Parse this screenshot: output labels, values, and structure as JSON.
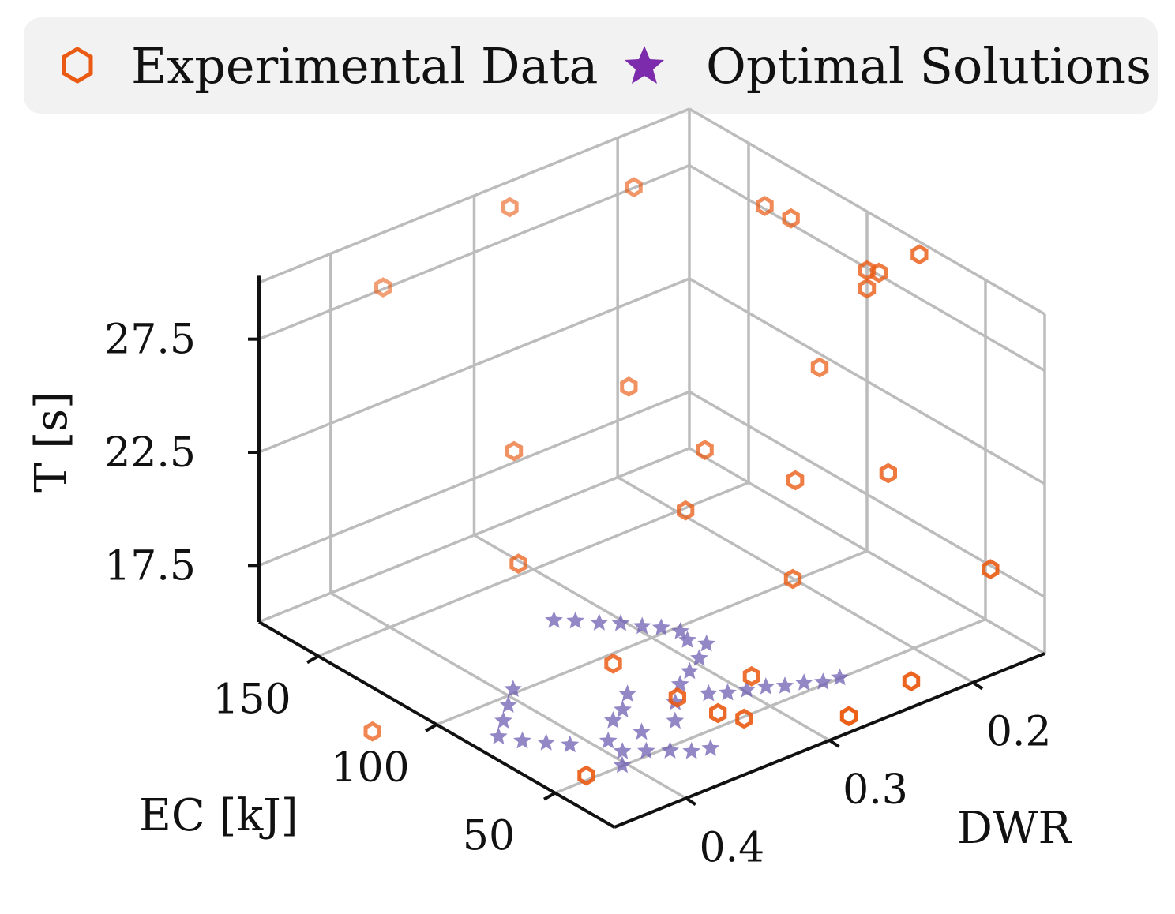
{
  "colors": {
    "experimental": "#ea5a12",
    "optimal": "#6f5fb3",
    "optimal_legend": "#7b2bab",
    "grid": "#bcbcbc",
    "axis": "#111111",
    "legend_bg": "#f2f2f2"
  },
  "legend": {
    "experimental_label": "Experimental Data",
    "experimental_icon": "hexagon-outline-icon",
    "optimal_label": "Optimal Solutions",
    "optimal_icon": "star-icon"
  },
  "chart_data": {
    "type": "scatter3d",
    "title": "",
    "legend_position": "top",
    "grid": true,
    "axes": {
      "x": {
        "label": "DWR",
        "ticks": [
          "0.2",
          "0.3",
          "0.4"
        ],
        "tick_values": [
          0.2,
          0.3,
          0.4
        ],
        "range": [
          0.15,
          0.45
        ]
      },
      "y": {
        "label": "EC [kJ]",
        "ticks": [
          "150",
          "100",
          "50"
        ],
        "tick_values": [
          150,
          100,
          50
        ],
        "range": [
          25,
          175
        ]
      },
      "z": {
        "label": "T [s]",
        "ticks": [
          "27.5",
          "22.5",
          "17.5"
        ],
        "tick_values": [
          27.5,
          22.5,
          17.5
        ],
        "range": [
          15,
          30
        ]
      }
    },
    "series": [
      {
        "name": "Experimental Data",
        "marker": "hexagon",
        "points": [
          {
            "dwr": 0.38,
            "ec": 165,
            "t": 28.6
          },
          {
            "dwr": 0.3,
            "ec": 160,
            "t": 30.4
          },
          {
            "dwr": 0.23,
            "ec": 150,
            "t": 30.1
          },
          {
            "dwr": 0.18,
            "ec": 125,
            "t": 29.5
          },
          {
            "dwr": 0.17,
            "ec": 120,
            "t": 29.0
          },
          {
            "dwr": 0.13,
            "ec": 90,
            "t": 28.2
          },
          {
            "dwr": 0.15,
            "ec": 95,
            "t": 27.6
          },
          {
            "dwr": 0.15,
            "ec": 100,
            "t": 27.4
          },
          {
            "dwr": 0.15,
            "ec": 100,
            "t": 26.6
          },
          {
            "dwr": 0.25,
            "ec": 140,
            "t": 22.4
          },
          {
            "dwr": 0.15,
            "ec": 120,
            "t": 21.9
          },
          {
            "dwr": 0.33,
            "ec": 140,
            "t": 21.6
          },
          {
            "dwr": 0.23,
            "ec": 120,
            "t": 20.3
          },
          {
            "dwr": 0.2,
            "ec": 100,
            "t": 19.4
          },
          {
            "dwr": 0.16,
            "ec": 85,
            "t": 19.6
          },
          {
            "dwr": 0.36,
            "ec": 120,
            "t": 18.6
          },
          {
            "dwr": 0.26,
            "ec": 110,
            "t": 19.0
          },
          {
            "dwr": 0.21,
            "ec": 95,
            "t": 15.6
          },
          {
            "dwr": 0.13,
            "ec": 60,
            "t": 16.1
          },
          {
            "dwr": 0.36,
            "ec": 80,
            "t": 16.6
          },
          {
            "dwr": 0.47,
            "ec": 115,
            "t": 14.3
          },
          {
            "dwr": 0.28,
            "ec": 70,
            "t": 14.6
          },
          {
            "dwr": 0.21,
            "ec": 45,
            "t": 14.1
          },
          {
            "dwr": 0.32,
            "ec": 60,
            "t": 14.6
          },
          {
            "dwr": 0.31,
            "ec": 55,
            "t": 14.4
          },
          {
            "dwr": 0.34,
            "ec": 65,
            "t": 15.5
          },
          {
            "dwr": 0.42,
            "ec": 55,
            "t": 14.7
          },
          {
            "dwr": 0.27,
            "ec": 35,
            "t": 14.7
          }
        ]
      },
      {
        "name": "Optimal Solutions",
        "marker": "star",
        "note": "dense Pareto-front cloud; representative sample",
        "points": [
          {
            "dwr": 0.36,
            "ec": 105,
            "t": 17.0
          },
          {
            "dwr": 0.35,
            "ec": 102,
            "t": 16.9
          },
          {
            "dwr": 0.34,
            "ec": 98,
            "t": 16.8
          },
          {
            "dwr": 0.33,
            "ec": 95,
            "t": 16.7
          },
          {
            "dwr": 0.32,
            "ec": 92,
            "t": 16.5
          },
          {
            "dwr": 0.31,
            "ec": 90,
            "t": 16.3
          },
          {
            "dwr": 0.3,
            "ec": 88,
            "t": 16.0
          },
          {
            "dwr": 0.3,
            "ec": 85,
            "t": 15.8
          },
          {
            "dwr": 0.29,
            "ec": 83,
            "t": 15.5
          },
          {
            "dwr": 0.3,
            "ec": 80,
            "t": 15.3
          },
          {
            "dwr": 0.31,
            "ec": 78,
            "t": 15.1
          },
          {
            "dwr": 0.32,
            "ec": 76,
            "t": 14.9
          },
          {
            "dwr": 0.4,
            "ec": 98,
            "t": 15.4
          },
          {
            "dwr": 0.41,
            "ec": 94,
            "t": 15.2
          },
          {
            "dwr": 0.42,
            "ec": 90,
            "t": 15.0
          },
          {
            "dwr": 0.43,
            "ec": 86,
            "t": 14.8
          },
          {
            "dwr": 0.42,
            "ec": 82,
            "t": 14.6
          },
          {
            "dwr": 0.41,
            "ec": 78,
            "t": 14.5
          },
          {
            "dwr": 0.4,
            "ec": 74,
            "t": 14.4
          },
          {
            "dwr": 0.38,
            "ec": 70,
            "t": 14.3
          },
          {
            "dwr": 0.36,
            "ec": 68,
            "t": 14.3
          },
          {
            "dwr": 0.34,
            "ec": 66,
            "t": 14.4
          },
          {
            "dwr": 0.35,
            "ec": 80,
            "t": 15.0
          },
          {
            "dwr": 0.36,
            "ec": 76,
            "t": 14.8
          },
          {
            "dwr": 0.37,
            "ec": 74,
            "t": 14.7
          },
          {
            "dwr": 0.33,
            "ec": 72,
            "t": 14.6
          },
          {
            "dwr": 0.31,
            "ec": 70,
            "t": 14.6
          },
          {
            "dwr": 0.3,
            "ec": 68,
            "t": 14.5
          },
          {
            "dwr": 0.29,
            "ec": 66,
            "t": 14.5
          },
          {
            "dwr": 0.28,
            "ec": 64,
            "t": 14.5
          },
          {
            "dwr": 0.27,
            "ec": 62,
            "t": 14.4
          },
          {
            "dwr": 0.26,
            "ec": 60,
            "t": 14.4
          },
          {
            "dwr": 0.25,
            "ec": 58,
            "t": 14.3
          },
          {
            "dwr": 0.24,
            "ec": 57,
            "t": 14.3
          },
          {
            "dwr": 0.38,
            "ec": 64,
            "t": 14.2
          },
          {
            "dwr": 0.37,
            "ec": 60,
            "t": 14.2
          },
          {
            "dwr": 0.36,
            "ec": 56,
            "t": 14.2
          },
          {
            "dwr": 0.35,
            "ec": 53,
            "t": 14.1
          },
          {
            "dwr": 0.34,
            "ec": 51,
            "t": 14.1
          },
          {
            "dwr": 0.39,
            "ec": 58,
            "t": 14.2
          }
        ]
      }
    ]
  }
}
